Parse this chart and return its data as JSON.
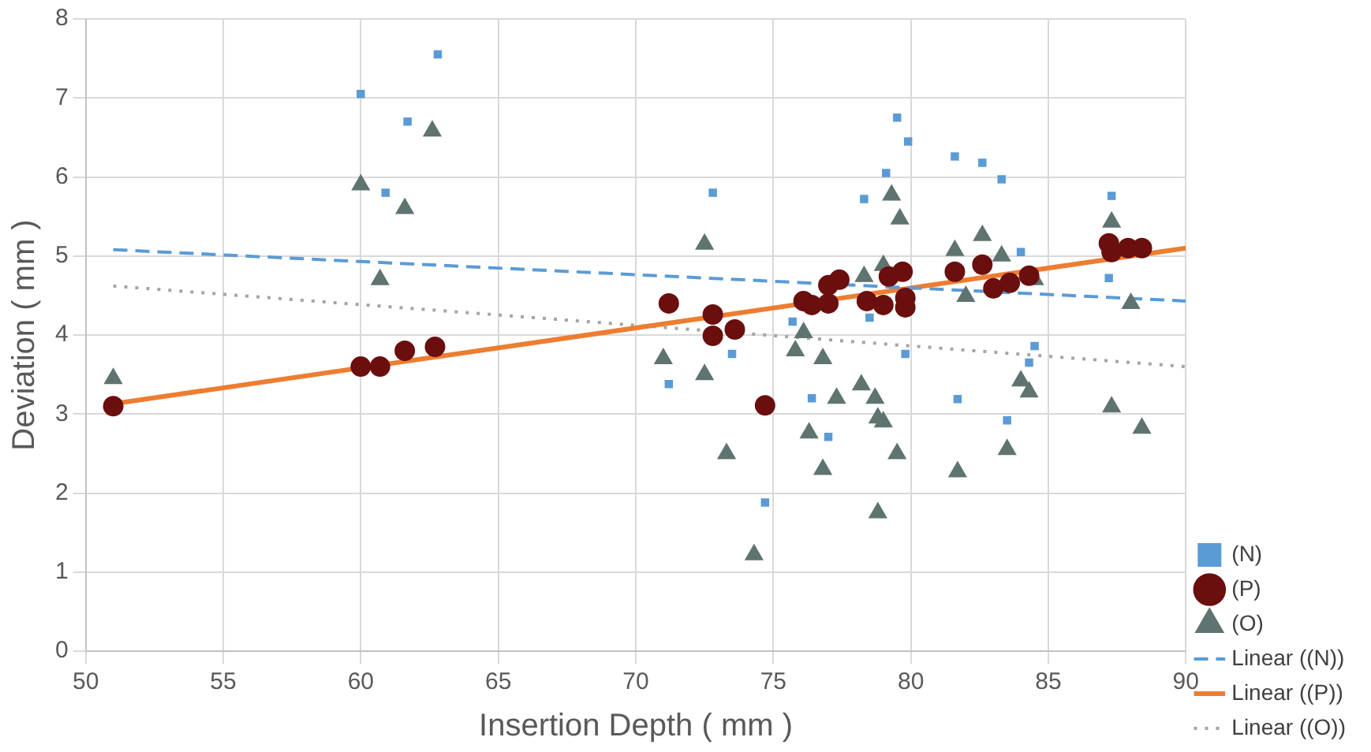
{
  "chart_data": {
    "type": "scatter",
    "xlabel": "Insertion Depth ( mm )",
    "ylabel": "Deviation ( mm )",
    "xlim": [
      50,
      90
    ],
    "xticks": [
      50,
      55,
      60,
      65,
      70,
      75,
      80,
      85,
      90
    ],
    "ylim": [
      0,
      8
    ],
    "yticks": [
      0,
      1,
      2,
      3,
      4,
      5,
      6,
      7,
      8
    ],
    "grid": true,
    "legend": "right",
    "series": [
      {
        "name": "(N)",
        "marker": "square",
        "color": "#5b9bd5",
        "x": [
          60,
          62.8,
          61.7,
          60.9,
          72.8,
          71.2,
          73.5,
          74.7,
          76.4,
          77,
          79.1,
          78.3,
          79.8,
          75.7,
          78.5,
          79.5,
          79.9,
          81.6,
          82.6,
          83.3,
          87.3,
          84,
          87.2,
          84.5,
          84.3,
          81.7,
          83.5
        ],
        "values": [
          7.05,
          7.55,
          6.7,
          5.8,
          5.8,
          3.38,
          3.76,
          1.88,
          3.2,
          2.71,
          6.05,
          5.72,
          3.76,
          4.17,
          4.22,
          6.75,
          6.45,
          6.26,
          6.18,
          5.97,
          5.76,
          5.05,
          4.72,
          3.86,
          3.65,
          3.19,
          2.92
        ]
      },
      {
        "name": "(P)",
        "marker": "circle",
        "color": "#6b0e0e",
        "x": [
          51,
          60,
          60.7,
          61.6,
          62.7,
          71.2,
          72.8,
          72.8,
          73.6,
          74.7,
          76.1,
          76.4,
          77,
          77.4,
          77,
          78.4,
          79,
          79.8,
          79.7,
          79.2,
          79.8,
          81.6,
          82.6,
          83,
          83.6,
          84.3,
          87.3,
          87.9,
          88.4,
          87.2
        ],
        "values": [
          3.1,
          3.6,
          3.6,
          3.8,
          3.85,
          4.4,
          4.26,
          3.99,
          4.07,
          3.11,
          4.43,
          4.38,
          4.63,
          4.7,
          4.4,
          4.43,
          4.38,
          4.47,
          4.8,
          4.74,
          4.35,
          4.8,
          4.89,
          4.59,
          4.66,
          4.75,
          5.05,
          5.1,
          5.1,
          5.16
        ]
      },
      {
        "name": "(O)",
        "marker": "triangle",
        "color": "#5f7470",
        "x": [
          51,
          60,
          60.7,
          61.6,
          62.6,
          72.5,
          71,
          72.5,
          73.3,
          74.3,
          75.8,
          76.1,
          76.3,
          76.8,
          76.8,
          77.3,
          78.2,
          78.7,
          79,
          78.8,
          79.5,
          78.8,
          79.3,
          79.6,
          78.3,
          79,
          81.6,
          82.6,
          83.3,
          84.5,
          82,
          87.3,
          88,
          84,
          84.3,
          87.3,
          88.4,
          83.5,
          81.7
        ],
        "values": [
          3.45,
          5.9,
          4.7,
          5.6,
          6.58,
          5.15,
          3.7,
          3.5,
          2.5,
          1.22,
          3.8,
          4.03,
          2.76,
          3.7,
          2.3,
          3.2,
          3.37,
          3.2,
          2.9,
          2.95,
          2.5,
          1.75,
          5.77,
          5.47,
          4.74,
          4.88,
          5.07,
          5.26,
          5.0,
          4.7,
          4.49,
          5.43,
          4.4,
          3.42,
          3.28,
          3.09,
          2.82,
          2.55,
          2.27
        ]
      },
      {
        "name": "Linear ((N))",
        "type": "line",
        "line_style": "dashed",
        "color": "#5b9bd5",
        "x": [
          51,
          90
        ],
        "values": [
          5.08,
          4.43
        ]
      },
      {
        "name": "Linear ((P))",
        "type": "line",
        "line_style": "solid",
        "color": "#ed7d31",
        "x": [
          51,
          90
        ],
        "values": [
          3.13,
          5.1
        ]
      },
      {
        "name": "Linear ((O))",
        "type": "line",
        "line_style": "dotted",
        "color": "#a5a5a5",
        "x": [
          51,
          90
        ],
        "values": [
          4.62,
          3.6
        ]
      }
    ]
  }
}
